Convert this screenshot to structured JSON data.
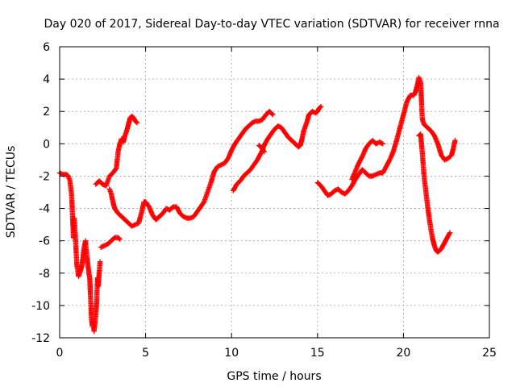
{
  "chart_data": {
    "type": "scatter",
    "title": "Day 020 of 2017, Sidereal Day-to-day VTEC variation (SDTVAR) for receiver rnna",
    "xlabel": "GPS time / hours",
    "ylabel": "SDTVAR / TECUs",
    "xlim": [
      0,
      25
    ],
    "ylim": [
      -12,
      6
    ],
    "xticks": [
      "0",
      "5",
      "10",
      "15",
      "20",
      "25"
    ],
    "yticks": [
      "6",
      "4",
      "2",
      "0",
      "-2",
      "-4",
      "-6",
      "-8",
      "-10",
      "-12"
    ],
    "grid": true,
    "marker": "plus",
    "color": "#ff0000",
    "segments": [
      [
        [
          0.0,
          -1.8
        ],
        [
          0.2,
          -1.9
        ],
        [
          0.4,
          -1.9
        ],
        [
          0.5,
          -2.0
        ],
        [
          0.6,
          -2.3
        ],
        [
          0.7,
          -3.2
        ],
        [
          0.75,
          -4.5
        ],
        [
          0.8,
          -5.8
        ],
        [
          0.85,
          -4.6
        ],
        [
          0.9,
          -5.5
        ],
        [
          1.0,
          -7.5
        ],
        [
          1.1,
          -8.2
        ],
        [
          1.2,
          -7.9
        ],
        [
          1.3,
          -7.5
        ],
        [
          1.4,
          -6.6
        ],
        [
          1.5,
          -6.0
        ],
        [
          1.6,
          -7.1
        ],
        [
          1.7,
          -8.0
        ],
        [
          1.75,
          -8.3
        ],
        [
          1.8,
          -9.5
        ],
        [
          1.85,
          -10.8
        ],
        [
          1.9,
          -11.3
        ],
        [
          1.95,
          -11.0
        ],
        [
          2.0,
          -11.6
        ],
        [
          2.1,
          -10.6
        ],
        [
          2.15,
          -9.8
        ],
        [
          2.2,
          -8.3
        ],
        [
          2.25,
          -8.8
        ],
        [
          2.3,
          -8.0
        ],
        [
          2.35,
          -7.3
        ]
      ],
      [
        [
          2.4,
          -6.4
        ],
        [
          2.6,
          -6.3
        ],
        [
          2.8,
          -6.2
        ],
        [
          3.0,
          -6.0
        ],
        [
          3.2,
          -5.8
        ],
        [
          3.4,
          -5.8
        ],
        [
          3.5,
          -5.9
        ]
      ],
      [
        [
          2.1,
          -2.5
        ],
        [
          2.3,
          -2.3
        ],
        [
          2.5,
          -2.5
        ],
        [
          2.7,
          -2.6
        ],
        [
          2.9,
          -2.0
        ],
        [
          3.1,
          -1.8
        ],
        [
          3.3,
          -1.5
        ],
        [
          3.4,
          -0.5
        ],
        [
          3.5,
          0.0
        ],
        [
          3.6,
          0.3
        ],
        [
          3.7,
          0.1
        ],
        [
          3.8,
          0.5
        ],
        [
          3.9,
          0.8
        ],
        [
          4.0,
          1.2
        ],
        [
          4.1,
          1.6
        ],
        [
          4.2,
          1.7
        ],
        [
          4.3,
          1.6
        ],
        [
          4.4,
          1.4
        ],
        [
          4.5,
          1.3
        ]
      ],
      [
        [
          2.9,
          -2.8
        ],
        [
          3.0,
          -3.1
        ],
        [
          3.1,
          -3.6
        ],
        [
          3.2,
          -4.0
        ],
        [
          3.4,
          -4.3
        ],
        [
          3.6,
          -4.5
        ],
        [
          3.8,
          -4.7
        ],
        [
          4.0,
          -4.9
        ],
        [
          4.2,
          -5.1
        ],
        [
          4.4,
          -5.0
        ],
        [
          4.6,
          -4.9
        ],
        [
          4.8,
          -4.1
        ],
        [
          4.9,
          -3.6
        ],
        [
          5.0,
          -3.6
        ],
        [
          5.2,
          -3.9
        ],
        [
          5.4,
          -4.4
        ],
        [
          5.6,
          -4.7
        ],
        [
          5.8,
          -4.5
        ],
        [
          6.0,
          -4.3
        ],
        [
          6.2,
          -4.0
        ],
        [
          6.4,
          -4.1
        ],
        [
          6.6,
          -3.9
        ],
        [
          6.8,
          -3.9
        ],
        [
          7.0,
          -4.3
        ],
        [
          7.2,
          -4.5
        ],
        [
          7.4,
          -4.6
        ],
        [
          7.6,
          -4.6
        ],
        [
          7.8,
          -4.5
        ],
        [
          8.0,
          -4.2
        ],
        [
          8.2,
          -3.9
        ],
        [
          8.4,
          -3.6
        ],
        [
          8.6,
          -3.0
        ],
        [
          8.8,
          -2.4
        ],
        [
          9.0,
          -1.7
        ],
        [
          9.2,
          -1.4
        ],
        [
          9.4,
          -1.3
        ],
        [
          9.6,
          -1.2
        ],
        [
          9.8,
          -0.9
        ],
        [
          10.0,
          -0.4
        ],
        [
          10.2,
          0.0
        ],
        [
          10.4,
          0.3
        ],
        [
          10.6,
          0.6
        ],
        [
          10.8,
          0.9
        ],
        [
          11.0,
          1.1
        ],
        [
          11.2,
          1.3
        ],
        [
          11.4,
          1.4
        ],
        [
          11.6,
          1.4
        ],
        [
          11.8,
          1.5
        ],
        [
          12.0,
          1.8
        ],
        [
          12.2,
          2.0
        ],
        [
          12.4,
          1.8
        ]
      ],
      [
        [
          10.1,
          -2.9
        ],
        [
          10.3,
          -2.5
        ],
        [
          10.5,
          -2.3
        ],
        [
          10.7,
          -2.0
        ],
        [
          10.9,
          -1.8
        ],
        [
          11.1,
          -1.6
        ],
        [
          11.3,
          -1.3
        ],
        [
          11.5,
          -1.0
        ],
        [
          11.7,
          -0.6
        ],
        [
          11.9,
          -0.1
        ],
        [
          12.1,
          0.3
        ],
        [
          12.3,
          0.6
        ],
        [
          12.5,
          0.9
        ],
        [
          12.7,
          1.1
        ],
        [
          12.9,
          1.0
        ],
        [
          13.1,
          0.7
        ],
        [
          13.3,
          0.4
        ],
        [
          13.5,
          0.2
        ],
        [
          13.7,
          0.0
        ],
        [
          13.9,
          -0.2
        ],
        [
          14.0,
          -0.1
        ],
        [
          14.1,
          0.3
        ],
        [
          14.2,
          0.8
        ],
        [
          14.3,
          1.1
        ],
        [
          14.4,
          1.4
        ],
        [
          14.5,
          1.8
        ],
        [
          14.7,
          2.0
        ],
        [
          14.9,
          1.9
        ],
        [
          15.0,
          2.0
        ],
        [
          15.1,
          2.2
        ],
        [
          15.2,
          2.3
        ]
      ],
      [
        [
          11.6,
          -0.1
        ],
        [
          11.8,
          -0.3
        ],
        [
          11.9,
          -0.5
        ]
      ],
      [
        [
          15.0,
          -2.4
        ],
        [
          15.2,
          -2.6
        ],
        [
          15.4,
          -2.9
        ],
        [
          15.6,
          -3.2
        ],
        [
          15.8,
          -3.1
        ],
        [
          16.0,
          -2.9
        ],
        [
          16.2,
          -2.8
        ],
        [
          16.4,
          -3.0
        ],
        [
          16.6,
          -3.1
        ],
        [
          16.8,
          -2.9
        ],
        [
          17.0,
          -2.6
        ],
        [
          17.2,
          -2.2
        ],
        [
          17.4,
          -1.9
        ],
        [
          17.6,
          -1.6
        ],
        [
          17.8,
          -1.8
        ],
        [
          18.0,
          -2.0
        ],
        [
          18.2,
          -2.0
        ],
        [
          18.4,
          -1.9
        ],
        [
          18.6,
          -1.8
        ],
        [
          18.8,
          -1.8
        ],
        [
          19.0,
          -1.4
        ],
        [
          19.2,
          -1.0
        ],
        [
          19.4,
          -0.5
        ],
        [
          19.6,
          0.2
        ],
        [
          19.8,
          1.0
        ],
        [
          20.0,
          1.8
        ],
        [
          20.2,
          2.6
        ],
        [
          20.4,
          3.0
        ],
        [
          20.6,
          3.0
        ],
        [
          20.7,
          3.2
        ],
        [
          20.8,
          3.6
        ],
        [
          20.9,
          4.1
        ],
        [
          21.0,
          3.8
        ],
        [
          21.05,
          2.6
        ],
        [
          21.1,
          1.5
        ],
        [
          21.2,
          1.2
        ],
        [
          21.4,
          1.0
        ],
        [
          21.6,
          0.8
        ],
        [
          21.8,
          0.5
        ],
        [
          22.0,
          0.0
        ],
        [
          22.2,
          -0.7
        ],
        [
          22.4,
          -1.0
        ],
        [
          22.6,
          -0.9
        ],
        [
          22.8,
          -0.7
        ],
        [
          22.9,
          -0.3
        ],
        [
          23.0,
          0.2
        ]
      ],
      [
        [
          17.0,
          -2.2
        ],
        [
          17.2,
          -1.7
        ],
        [
          17.4,
          -1.2
        ],
        [
          17.6,
          -0.8
        ],
        [
          17.8,
          -0.3
        ],
        [
          18.0,
          0.0
        ],
        [
          18.2,
          0.2
        ],
        [
          18.4,
          0.0
        ],
        [
          18.6,
          0.1
        ],
        [
          18.8,
          0.0
        ]
      ],
      [
        [
          20.9,
          0.5
        ],
        [
          21.0,
          0.6
        ],
        [
          21.1,
          -0.6
        ],
        [
          21.2,
          -2.0
        ],
        [
          21.3,
          -2.9
        ],
        [
          21.4,
          -3.8
        ],
        [
          21.5,
          -4.6
        ],
        [
          21.6,
          -5.3
        ],
        [
          21.7,
          -5.9
        ],
        [
          21.8,
          -6.3
        ],
        [
          21.9,
          -6.6
        ],
        [
          22.0,
          -6.7
        ],
        [
          22.2,
          -6.5
        ],
        [
          22.4,
          -6.1
        ],
        [
          22.6,
          -5.7
        ],
        [
          22.7,
          -5.5
        ]
      ]
    ]
  }
}
